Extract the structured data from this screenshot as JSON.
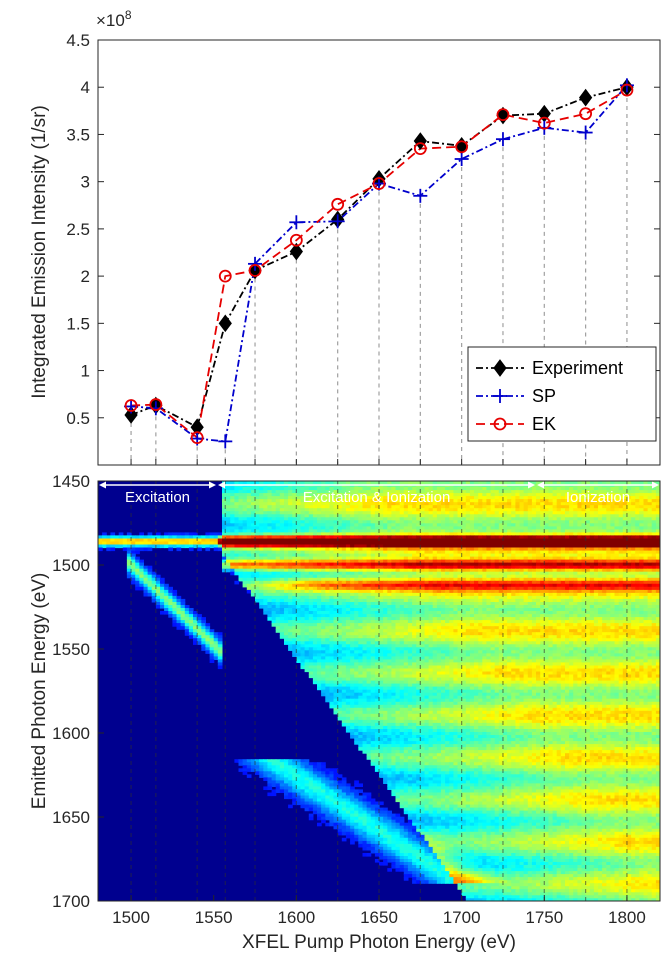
{
  "chart_data": [
    {
      "type": "line",
      "ylabel": "Integrated Emission Intensity (1/sr)",
      "y_multiplier_label": "×10",
      "y_multiplier_exponent": "8",
      "xlim": [
        1480,
        1820
      ],
      "ylim": [
        0,
        4.5
      ],
      "yticks": [
        "0.5",
        "1",
        "1.5",
        "2",
        "2.5",
        "3",
        "3.5",
        "4",
        "4.5"
      ],
      "ytick_values": [
        0.5,
        1,
        1.5,
        2,
        2.5,
        3,
        3.5,
        4,
        4.5
      ],
      "x": [
        1500,
        1515,
        1540,
        1557,
        1575,
        1600,
        1625,
        1650,
        1675,
        1700,
        1725,
        1750,
        1775,
        1800
      ],
      "series": [
        {
          "name": "Experiment",
          "color": "#000000",
          "marker": "diamond",
          "values": [
            0.53,
            0.63,
            0.4,
            1.5,
            2.06,
            2.26,
            2.6,
            3.03,
            3.43,
            3.38,
            3.7,
            3.72,
            3.89,
            4.0
          ]
        },
        {
          "name": "SP",
          "color": "#0000cc",
          "marker": "plus",
          "values": [
            0.62,
            0.6,
            0.28,
            0.25,
            2.13,
            2.57,
            2.58,
            2.98,
            2.85,
            3.24,
            3.45,
            3.57,
            3.52,
            4.02
          ]
        },
        {
          "name": "EK",
          "color": "#e60000",
          "marker": "circle",
          "values": [
            0.63,
            0.64,
            0.29,
            2.0,
            2.06,
            2.38,
            2.76,
            2.98,
            3.35,
            3.37,
            3.71,
            3.62,
            3.72,
            3.97
          ]
        }
      ],
      "legend_position": "lower-right"
    },
    {
      "type": "heatmap",
      "xlabel": "XFEL Pump Photon Energy (eV)",
      "ylabel": "Emitted Photon Energy (eV)",
      "xlim": [
        1480,
        1820
      ],
      "ylim": [
        1450,
        1700
      ],
      "y_direction": "reversed",
      "xticks": [
        "1500",
        "1550",
        "1600",
        "1650",
        "1700",
        "1750",
        "1800"
      ],
      "xtick_values": [
        1500,
        1550,
        1600,
        1650,
        1700,
        1750,
        1800
      ],
      "yticks": [
        "1450",
        "1500",
        "1550",
        "1600",
        "1650",
        "1700"
      ],
      "ytick_values": [
        1450,
        1500,
        1550,
        1600,
        1650,
        1700
      ],
      "colormap": "jet",
      "regions": [
        {
          "label": "Excitation",
          "x_range": [
            1480,
            1552
          ]
        },
        {
          "label": "Excitation & Ionization",
          "x_range": [
            1552,
            1745
          ]
        },
        {
          "label": "Ionization",
          "x_range": [
            1745,
            1820
          ]
        }
      ],
      "dashed_guides_x": [
        1500,
        1515,
        1540,
        1557,
        1575,
        1600,
        1625,
        1650,
        1675,
        1700,
        1725,
        1750,
        1775,
        1800
      ]
    }
  ]
}
